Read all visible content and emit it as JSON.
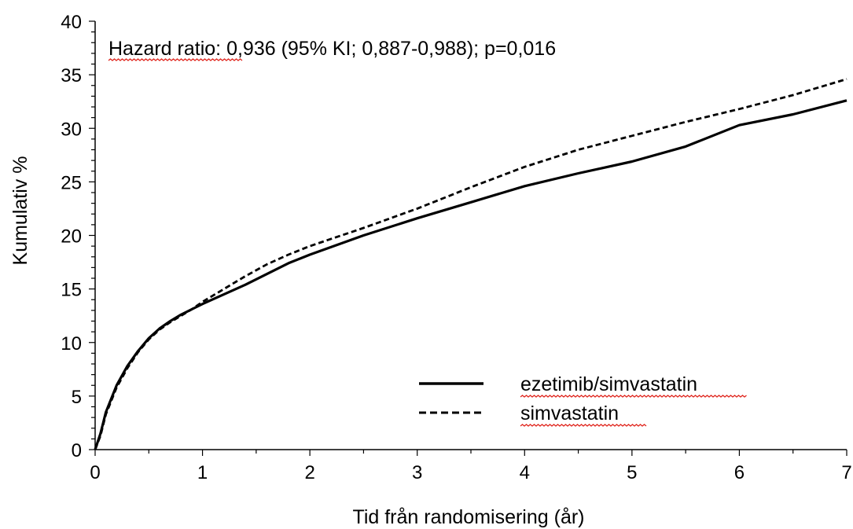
{
  "chart_data": {
    "type": "line",
    "xlabel": "Tid från randomisering (år)",
    "ylabel": "Kumulativ  %",
    "xlim": [
      0,
      7
    ],
    "ylim": [
      0,
      40
    ],
    "x_ticks": [
      "0",
      "1",
      "2",
      "3",
      "4",
      "5",
      "6",
      "7"
    ],
    "y_ticks": [
      "0",
      "5",
      "10",
      "15",
      "20",
      "25",
      "30",
      "35",
      "40"
    ],
    "grid": false,
    "legend_position": "bottom-right",
    "annotation": {
      "underlined": "Hazard ratio",
      "rest": ": 0,936 (95% KI; 0,887-0,988); p=0,016"
    },
    "series": [
      {
        "name": "ezetimib/simvastatin",
        "line_style": "solid",
        "x": [
          0,
          0.05,
          0.1,
          0.2,
          0.3,
          0.4,
          0.5,
          0.6,
          0.7,
          0.8,
          0.9,
          1.0,
          1.2,
          1.4,
          1.6,
          1.8,
          2.0,
          2.5,
          3.0,
          3.5,
          4.0,
          4.5,
          5.0,
          5.5,
          6.0,
          6.5,
          7.0
        ],
        "values": [
          0,
          1.5,
          3.5,
          6.0,
          7.8,
          9.2,
          10.4,
          11.3,
          12.0,
          12.6,
          13.1,
          13.6,
          14.5,
          15.4,
          16.4,
          17.4,
          18.2,
          20.0,
          21.6,
          23.1,
          24.6,
          25.8,
          26.9,
          28.3,
          30.3,
          31.3,
          32.6
        ]
      },
      {
        "name": "simvastatin",
        "line_style": "dashed",
        "x": [
          0,
          0.05,
          0.1,
          0.2,
          0.3,
          0.4,
          0.5,
          0.6,
          0.7,
          0.8,
          0.9,
          1.0,
          1.2,
          1.4,
          1.6,
          1.8,
          2.0,
          2.5,
          3.0,
          3.5,
          4.0,
          4.5,
          5.0,
          5.5,
          6.0,
          6.5,
          7.0
        ],
        "values": [
          0,
          1.3,
          3.3,
          5.8,
          7.6,
          9.1,
          10.3,
          11.2,
          11.9,
          12.5,
          13.1,
          13.8,
          15.0,
          16.2,
          17.3,
          18.2,
          19.0,
          20.7,
          22.5,
          24.5,
          26.4,
          28.0,
          29.3,
          30.6,
          31.8,
          33.1,
          34.6
        ]
      }
    ]
  }
}
